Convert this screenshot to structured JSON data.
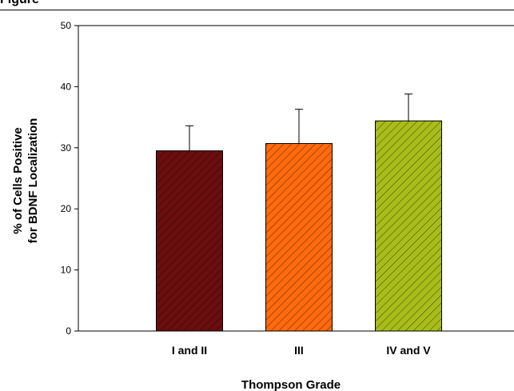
{
  "header": {
    "text": "Figure"
  },
  "chart_data": {
    "type": "bar",
    "title": "",
    "categories": [
      "I and II",
      "III",
      "IV and V"
    ],
    "series": [
      {
        "values": [
          29.5,
          30.7,
          34.4
        ],
        "error_plus": [
          4.1,
          5.6,
          4.4
        ]
      }
    ],
    "bar_colors": [
      "#6b0e0e",
      "#ff6a0d",
      "#a9bd1a"
    ],
    "hatch": "diagonal",
    "xlabel": "Thompson Grade",
    "ylabel_lines": [
      "% of Cells Positive",
      "for BDNF Localization"
    ],
    "ylim": [
      0,
      50
    ],
    "yticks": [
      0,
      10,
      20,
      30,
      40,
      50
    ],
    "grid": false
  }
}
